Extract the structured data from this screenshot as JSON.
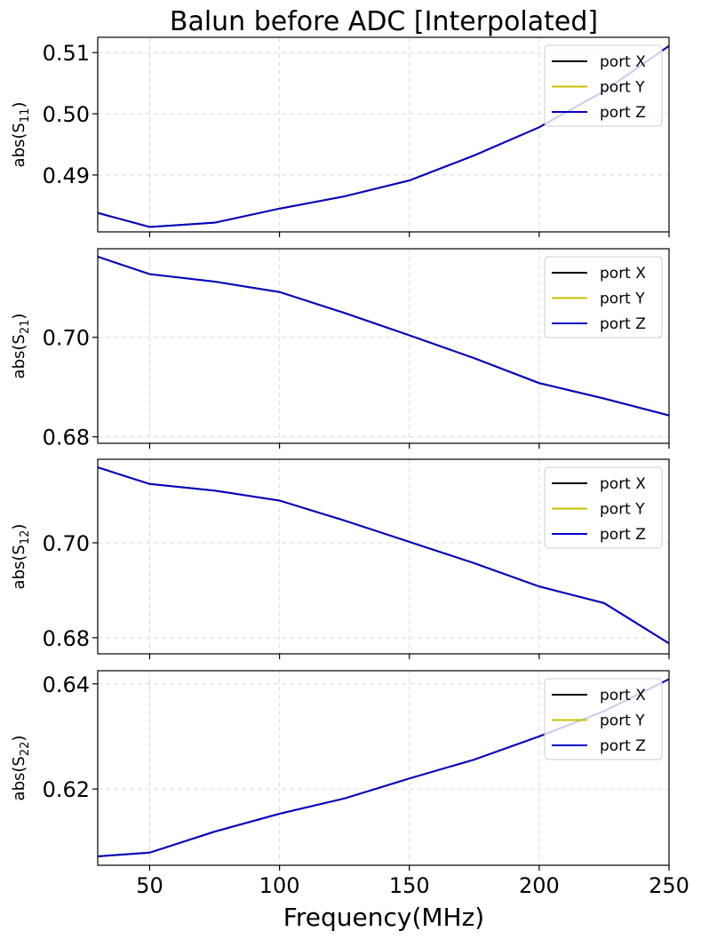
{
  "title": "Balun before ADC [Interpolated]",
  "xlabel": "Frequency(MHz)",
  "colors": {
    "port_x": "#000000",
    "port_y": "#c8c000",
    "port_z": "#0000cc",
    "grid": "#d9d9d9"
  },
  "chart_data": [
    {
      "type": "line",
      "ylabel_base": "abs(S",
      "ylabel_sub": "11",
      "ylabel_end": ")",
      "xlim": [
        30,
        250
      ],
      "ylim": [
        0.4807,
        0.5125
      ],
      "x": [
        30,
        50,
        75,
        100,
        125,
        150,
        175,
        200,
        225,
        250
      ],
      "xticks": [
        50,
        100,
        150,
        200,
        250
      ],
      "yticks": [
        0.49,
        0.5,
        0.51
      ],
      "ytick_labels": [
        "0.49",
        "0.50",
        "0.51"
      ],
      "series": [
        {
          "name": "port X",
          "color": "#000000",
          "values": [
            0.4838,
            0.4815,
            0.4822,
            0.4845,
            0.4865,
            0.4891,
            0.4932,
            0.4978,
            0.5037,
            0.5111
          ]
        },
        {
          "name": "port Y",
          "color": "#c8c000",
          "values": [
            0.4838,
            0.4815,
            0.4822,
            0.4845,
            0.4865,
            0.4891,
            0.4932,
            0.4978,
            0.5037,
            0.5111
          ]
        },
        {
          "name": "port Z",
          "color": "#0000cc",
          "values": [
            0.4838,
            0.4815,
            0.4822,
            0.4845,
            0.4865,
            0.4891,
            0.4932,
            0.4978,
            0.5037,
            0.5111
          ]
        }
      ],
      "legend": "top-right",
      "grid": true
    },
    {
      "type": "line",
      "ylabel_base": "abs(S",
      "ylabel_sub": "21",
      "ylabel_end": ")",
      "xlim": [
        30,
        250
      ],
      "ylim": [
        0.6787,
        0.7178
      ],
      "x": [
        30,
        50,
        75,
        100,
        125,
        150,
        175,
        200,
        225,
        250
      ],
      "xticks": [
        50,
        100,
        150,
        200,
        250
      ],
      "yticks": [
        0.68,
        0.7
      ],
      "ytick_labels": [
        "0.68",
        "0.70"
      ],
      "series": [
        {
          "name": "port X",
          "color": "#000000",
          "values": [
            0.7162,
            0.7127,
            0.7112,
            0.7091,
            0.7049,
            0.7004,
            0.6958,
            0.6908,
            0.6877,
            0.6843
          ]
        },
        {
          "name": "port Y",
          "color": "#c8c000",
          "values": [
            0.7162,
            0.7127,
            0.7112,
            0.7091,
            0.7049,
            0.7004,
            0.6958,
            0.6908,
            0.6877,
            0.6843
          ]
        },
        {
          "name": "port Z",
          "color": "#0000cc",
          "values": [
            0.7162,
            0.7127,
            0.7112,
            0.7091,
            0.7049,
            0.7004,
            0.6958,
            0.6908,
            0.6877,
            0.6843
          ]
        }
      ],
      "legend": "top-right",
      "grid": true
    },
    {
      "type": "line",
      "ylabel_base": "abs(S",
      "ylabel_sub": "12",
      "ylabel_end": ")",
      "xlim": [
        30,
        250
      ],
      "ylim": [
        0.6766,
        0.7176
      ],
      "x": [
        30,
        50,
        75,
        100,
        125,
        150,
        175,
        200,
        225,
        250
      ],
      "xticks": [
        50,
        100,
        150,
        200,
        250
      ],
      "yticks": [
        0.68,
        0.7
      ],
      "ytick_labels": [
        "0.68",
        "0.70"
      ],
      "series": [
        {
          "name": "port X",
          "color": "#000000",
          "values": [
            0.7159,
            0.7124,
            0.711,
            0.7089,
            0.7047,
            0.7002,
            0.6957,
            0.6908,
            0.6873,
            0.6788
          ]
        },
        {
          "name": "port Y",
          "color": "#c8c000",
          "values": [
            0.7159,
            0.7124,
            0.711,
            0.7089,
            0.7047,
            0.7002,
            0.6957,
            0.6908,
            0.6873,
            0.6788
          ]
        },
        {
          "name": "port Z",
          "color": "#0000cc",
          "values": [
            0.7159,
            0.7124,
            0.711,
            0.7089,
            0.7047,
            0.7002,
            0.6957,
            0.6908,
            0.6873,
            0.6788
          ]
        }
      ],
      "legend": "top-right",
      "grid": true
    },
    {
      "type": "line",
      "ylabel_base": "abs(S",
      "ylabel_sub": "22",
      "ylabel_end": ")",
      "xlim": [
        30,
        250
      ],
      "ylim": [
        0.6055,
        0.6425
      ],
      "x": [
        30,
        50,
        75,
        100,
        125,
        150,
        175,
        200,
        225,
        250
      ],
      "xticks": [
        50,
        100,
        150,
        200,
        250
      ],
      "yticks": [
        0.62,
        0.64
      ],
      "ytick_labels": [
        "0.62",
        "0.64"
      ],
      "series": [
        {
          "name": "port X",
          "color": "#000000",
          "values": [
            0.6072,
            0.6079,
            0.6119,
            0.6153,
            0.6182,
            0.622,
            0.6256,
            0.63,
            0.6348,
            0.6409
          ]
        },
        {
          "name": "port Y",
          "color": "#c8c000",
          "values": [
            0.6072,
            0.6079,
            0.6119,
            0.6153,
            0.6182,
            0.622,
            0.6256,
            0.63,
            0.6348,
            0.6409
          ]
        },
        {
          "name": "port Z",
          "color": "#0000cc",
          "values": [
            0.6072,
            0.6079,
            0.6119,
            0.6153,
            0.6182,
            0.622,
            0.6256,
            0.63,
            0.6348,
            0.6409
          ]
        }
      ],
      "legend": "top-right",
      "grid": true
    }
  ]
}
